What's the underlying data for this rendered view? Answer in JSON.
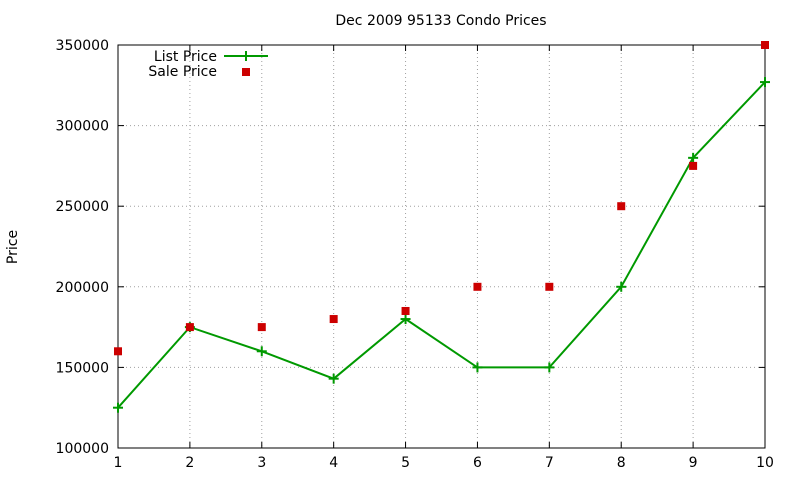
{
  "chart_data": {
    "type": "line",
    "title": "Dec 2009 95133 Condo Prices",
    "xlabel": "",
    "ylabel": "Price",
    "xlim": [
      1,
      10
    ],
    "ylim": [
      100000,
      350000
    ],
    "x_ticks": [
      "1",
      "2",
      "3",
      "4",
      "5",
      "6",
      "7",
      "8",
      "9",
      "10"
    ],
    "y_ticks": [
      "100000",
      "150000",
      "200000",
      "250000",
      "300000",
      "350000"
    ],
    "grid": true,
    "legend_position": "top-left",
    "series": [
      {
        "name": "List Price",
        "style": "line with + markers",
        "color": "#009900",
        "points": [
          {
            "x": 1,
            "y": 125000
          },
          {
            "x": 2,
            "y": 175000
          },
          {
            "x": 3,
            "y": 160000
          },
          {
            "x": 4,
            "y": 143000
          },
          {
            "x": 5,
            "y": 180000
          },
          {
            "x": 6,
            "y": 150000
          },
          {
            "x": 7,
            "y": 150000
          },
          {
            "x": 8,
            "y": 200000
          },
          {
            "x": 9,
            "y": 280000
          },
          {
            "x": 10,
            "y": 327000
          }
        ]
      },
      {
        "name": "Sale Price",
        "style": "square markers",
        "color": "#cc0000",
        "points": [
          {
            "x": 1,
            "y": 160000
          },
          {
            "x": 2,
            "y": 175000
          },
          {
            "x": 3,
            "y": 175000
          },
          {
            "x": 4,
            "y": 180000
          },
          {
            "x": 5,
            "y": 185000
          },
          {
            "x": 6,
            "y": 200000
          },
          {
            "x": 7,
            "y": 200000
          },
          {
            "x": 8,
            "y": 250000
          },
          {
            "x": 9,
            "y": 275000
          },
          {
            "x": 10,
            "y": 350000
          }
        ]
      }
    ]
  }
}
